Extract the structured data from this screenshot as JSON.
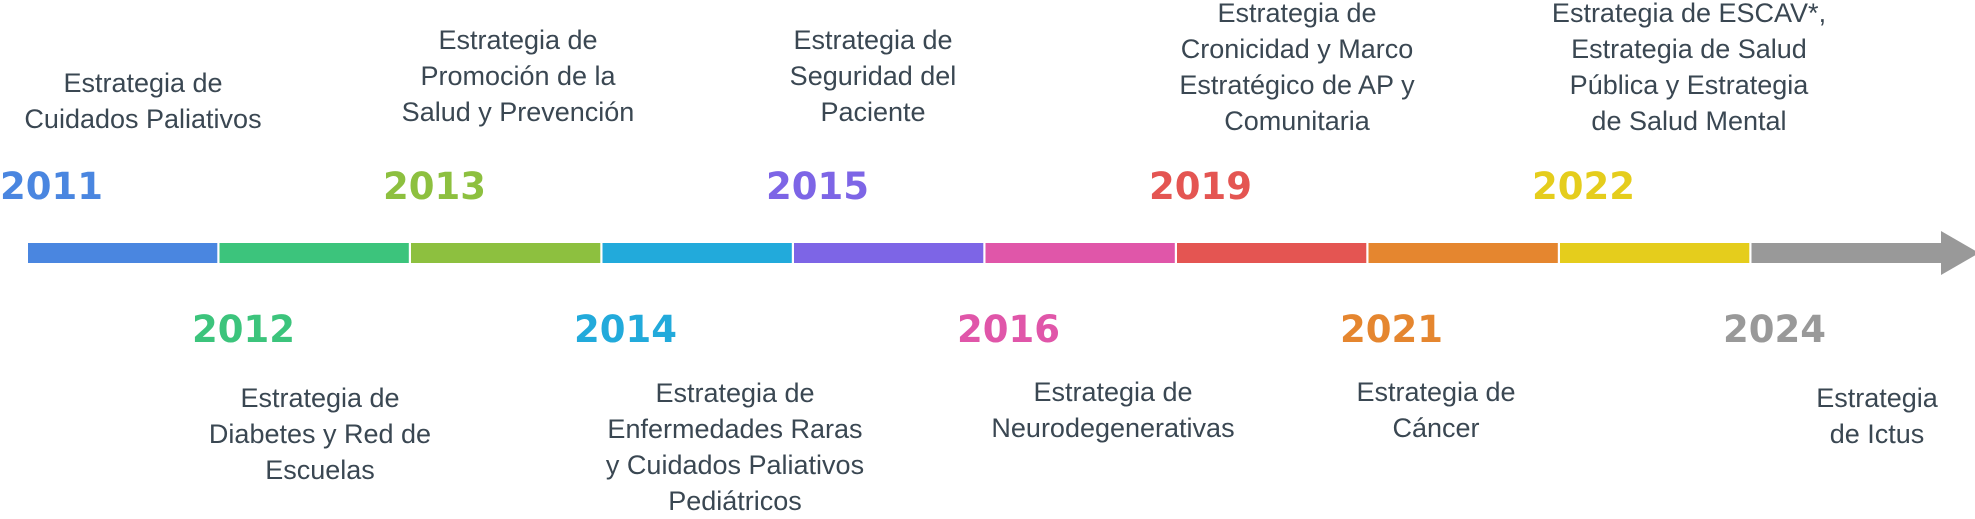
{
  "events": [
    {
      "year": "2011",
      "color": "#4a86e0",
      "text": "Estrategia de\nCuidados Paliativos"
    },
    {
      "year": "2012",
      "color": "#3cc47c",
      "text": "Estrategia de\nDiabetes y Red de\nEscuelas"
    },
    {
      "year": "2013",
      "color": "#8dc03f",
      "text": "Estrategia de\nPromoción de la\nSalud y Prevención"
    },
    {
      "year": "2014",
      "color": "#22aadb",
      "text": "Estrategia de\nEnfermedades Raras\ny Cuidados Paliativos\nPediátricos"
    },
    {
      "year": "2015",
      "color": "#7d65e6",
      "text": "Estrategia de\nSeguridad del\nPaciente"
    },
    {
      "year": "2016",
      "color": "#e056a9",
      "text": "Estrategia de\nNeurodegenerativas"
    },
    {
      "year": "2019",
      "color": "#e45552",
      "text": "Estrategia de\nCronicidad y Marco\nEstratégico de AP y\nComunitaria"
    },
    {
      "year": "2021",
      "color": "#e5862f",
      "text": "Estrategia de\nCáncer"
    },
    {
      "year": "2022",
      "color": "#e5cd1c",
      "text": "Estrategia de ESCAV*,\nEstrategia de Salud\nPública y Estrategia\nde Salud Mental"
    },
    {
      "year": "2024",
      "color": "#999999",
      "text": "Estrategia de Ictus"
    }
  ]
}
